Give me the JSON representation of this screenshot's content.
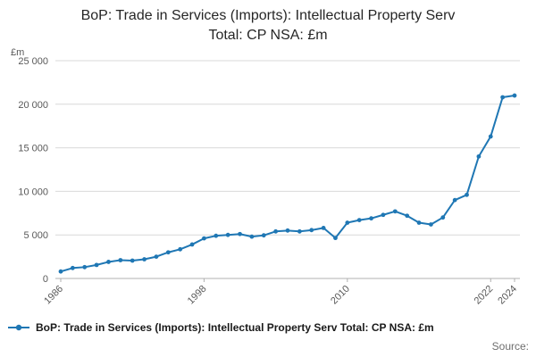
{
  "title_line1": "BoP: Trade in Services (Imports): Intellectual Property Serv",
  "title_line2": "Total: CP NSA: £m",
  "colors": {
    "line": "#1f77b4",
    "grid": "#d9d9d9",
    "axis": "#b0b0b0",
    "tick_text": "#595959",
    "title_text": "#262626",
    "legend_text": "#1a1a1a",
    "muted": "#6e6e6e"
  },
  "chart_data": {
    "type": "line",
    "title": "BoP: Trade in Services (Imports): Intellectual Property Serv Total: CP NSA: £m",
    "xlabel": "",
    "ylabel": "£m",
    "grid": true,
    "legend_position": "bottom",
    "marker": "circle",
    "ylim": [
      0,
      25000
    ],
    "yticks": [
      0,
      5000,
      10000,
      15000,
      20000,
      25000
    ],
    "ytick_labels": [
      "0",
      "5 000",
      "10 000",
      "15 000",
      "20 000",
      "25 000"
    ],
    "xticks": [
      1986,
      1998,
      2010,
      2022,
      2024
    ],
    "x": [
      1986,
      1987,
      1988,
      1989,
      1990,
      1991,
      1992,
      1993,
      1994,
      1995,
      1996,
      1997,
      1998,
      1999,
      2000,
      2001,
      2002,
      2003,
      2004,
      2005,
      2006,
      2007,
      2008,
      2009,
      2010,
      2011,
      2012,
      2013,
      2014,
      2015,
      2016,
      2017,
      2018,
      2019,
      2020,
      2021,
      2022,
      2023,
      2024
    ],
    "series": [
      {
        "name": "BoP: Trade in Services (Imports): Intellectual Property Serv Total: CP NSA: £m",
        "values": [
          800,
          1200,
          1300,
          1550,
          1900,
          2100,
          2050,
          2200,
          2500,
          3000,
          3350,
          3900,
          4600,
          4900,
          5000,
          5100,
          4800,
          4950,
          5400,
          5500,
          5400,
          5550,
          5800,
          4650,
          6400,
          6700,
          6900,
          7300,
          7700,
          7200,
          6400,
          6200,
          7000,
          9000,
          9600,
          14000,
          16300,
          20800,
          21000
        ]
      }
    ]
  },
  "legend": {
    "label": "BoP: Trade in Services (Imports): Intellectual Property Serv Total: CP NSA: £m"
  },
  "footer": {
    "source": "Source:"
  }
}
